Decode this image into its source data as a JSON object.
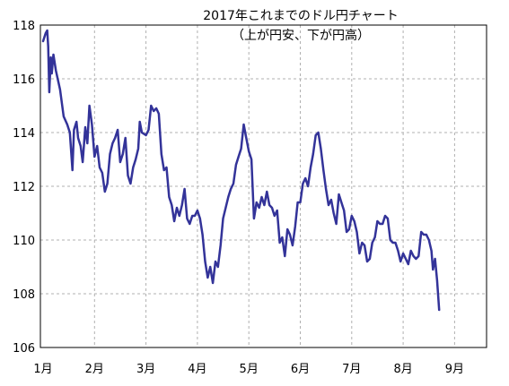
{
  "chart_data": {
    "type": "line",
    "title": "2017年これまでのドル円チャート",
    "subtitle": "（上が円安、下が円高）",
    "xlabel": "",
    "ylabel": "",
    "ylim": [
      106,
      118
    ],
    "yticks": [
      106,
      108,
      110,
      112,
      114,
      116,
      118
    ],
    "xlim": [
      0,
      8.9
    ],
    "xtick_labels": [
      "1月",
      "2月",
      "3月",
      "4月",
      "5月",
      "6月",
      "7月",
      "8月",
      "9月"
    ],
    "grid": true,
    "line_color": "#333399",
    "series": [
      {
        "name": "",
        "points": [
          [
            0.0,
            117.4
          ],
          [
            0.05,
            117.7
          ],
          [
            0.08,
            117.8
          ],
          [
            0.1,
            117.2
          ],
          [
            0.12,
            115.5
          ],
          [
            0.15,
            116.8
          ],
          [
            0.17,
            116.2
          ],
          [
            0.2,
            116.9
          ],
          [
            0.25,
            116.3
          ],
          [
            0.33,
            115.6
          ],
          [
            0.4,
            114.6
          ],
          [
            0.47,
            114.3
          ],
          [
            0.52,
            114.0
          ],
          [
            0.57,
            112.6
          ],
          [
            0.6,
            114.1
          ],
          [
            0.65,
            114.4
          ],
          [
            0.68,
            113.8
          ],
          [
            0.73,
            113.5
          ],
          [
            0.77,
            112.9
          ],
          [
            0.82,
            114.2
          ],
          [
            0.86,
            113.6
          ],
          [
            0.9,
            115.0
          ],
          [
            0.95,
            114.3
          ],
          [
            1.0,
            113.1
          ],
          [
            1.05,
            113.5
          ],
          [
            1.1,
            112.7
          ],
          [
            1.15,
            112.5
          ],
          [
            1.2,
            111.8
          ],
          [
            1.25,
            112.1
          ],
          [
            1.3,
            113.2
          ],
          [
            1.35,
            113.6
          ],
          [
            1.4,
            113.8
          ],
          [
            1.45,
            114.1
          ],
          [
            1.5,
            112.9
          ],
          [
            1.55,
            113.2
          ],
          [
            1.6,
            113.8
          ],
          [
            1.65,
            112.4
          ],
          [
            1.7,
            112.1
          ],
          [
            1.75,
            112.7
          ],
          [
            1.8,
            113.0
          ],
          [
            1.85,
            113.4
          ],
          [
            1.88,
            114.4
          ],
          [
            1.92,
            114.0
          ],
          [
            2.0,
            113.9
          ],
          [
            2.05,
            114.1
          ],
          [
            2.1,
            115.0
          ],
          [
            2.15,
            114.8
          ],
          [
            2.2,
            114.9
          ],
          [
            2.25,
            114.7
          ],
          [
            2.3,
            113.2
          ],
          [
            2.35,
            112.6
          ],
          [
            2.4,
            112.7
          ],
          [
            2.45,
            111.6
          ],
          [
            2.5,
            111.3
          ],
          [
            2.55,
            110.7
          ],
          [
            2.6,
            111.2
          ],
          [
            2.65,
            110.9
          ],
          [
            2.7,
            111.3
          ],
          [
            2.75,
            111.9
          ],
          [
            2.8,
            110.8
          ],
          [
            2.85,
            110.6
          ],
          [
            2.9,
            110.9
          ],
          [
            2.95,
            110.9
          ],
          [
            3.0,
            111.1
          ],
          [
            3.05,
            110.8
          ],
          [
            3.1,
            110.2
          ],
          [
            3.15,
            109.2
          ],
          [
            3.2,
            108.6
          ],
          [
            3.25,
            109.0
          ],
          [
            3.3,
            108.4
          ],
          [
            3.35,
            109.2
          ],
          [
            3.4,
            109.0
          ],
          [
            3.45,
            109.8
          ],
          [
            3.5,
            110.8
          ],
          [
            3.55,
            111.2
          ],
          [
            3.6,
            111.6
          ],
          [
            3.65,
            111.9
          ],
          [
            3.7,
            112.1
          ],
          [
            3.75,
            112.8
          ],
          [
            3.8,
            113.1
          ],
          [
            3.85,
            113.4
          ],
          [
            3.9,
            114.3
          ],
          [
            3.95,
            113.8
          ],
          [
            4.0,
            113.3
          ],
          [
            4.05,
            113.0
          ],
          [
            4.1,
            110.8
          ],
          [
            4.15,
            111.4
          ],
          [
            4.2,
            111.2
          ],
          [
            4.25,
            111.6
          ],
          [
            4.3,
            111.3
          ],
          [
            4.35,
            111.8
          ],
          [
            4.4,
            111.3
          ],
          [
            4.45,
            111.2
          ],
          [
            4.5,
            110.9
          ],
          [
            4.55,
            111.1
          ],
          [
            4.6,
            109.9
          ],
          [
            4.65,
            110.1
          ],
          [
            4.7,
            109.4
          ],
          [
            4.75,
            110.4
          ],
          [
            4.8,
            110.2
          ],
          [
            4.85,
            109.8
          ],
          [
            4.9,
            110.5
          ],
          [
            4.95,
            111.4
          ],
          [
            5.0,
            111.4
          ],
          [
            5.05,
            112.1
          ],
          [
            5.1,
            112.3
          ],
          [
            5.15,
            112.0
          ],
          [
            5.2,
            112.7
          ],
          [
            5.25,
            113.2
          ],
          [
            5.3,
            113.9
          ],
          [
            5.35,
            114.0
          ],
          [
            5.4,
            113.4
          ],
          [
            5.45,
            112.6
          ],
          [
            5.5,
            111.9
          ],
          [
            5.55,
            111.3
          ],
          [
            5.6,
            111.5
          ],
          [
            5.65,
            111.0
          ],
          [
            5.7,
            110.6
          ],
          [
            5.75,
            111.7
          ],
          [
            5.8,
            111.4
          ],
          [
            5.85,
            111.1
          ],
          [
            5.9,
            110.3
          ],
          [
            5.95,
            110.4
          ],
          [
            6.0,
            110.9
          ],
          [
            6.05,
            110.7
          ],
          [
            6.1,
            110.3
          ],
          [
            6.15,
            109.5
          ],
          [
            6.2,
            109.9
          ],
          [
            6.25,
            109.8
          ],
          [
            6.3,
            109.2
          ],
          [
            6.35,
            109.3
          ],
          [
            6.4,
            109.9
          ],
          [
            6.45,
            110.1
          ],
          [
            6.5,
            110.7
          ],
          [
            6.55,
            110.6
          ],
          [
            6.6,
            110.6
          ],
          [
            6.65,
            110.9
          ],
          [
            6.7,
            110.8
          ],
          [
            6.75,
            110.0
          ],
          [
            6.8,
            109.9
          ],
          [
            6.85,
            109.9
          ],
          [
            6.9,
            109.6
          ],
          [
            6.95,
            109.2
          ],
          [
            7.0,
            109.5
          ],
          [
            7.05,
            109.3
          ],
          [
            7.1,
            109.1
          ],
          [
            7.15,
            109.6
          ],
          [
            7.2,
            109.4
          ],
          [
            7.25,
            109.3
          ],
          [
            7.3,
            109.4
          ],
          [
            7.35,
            110.3
          ],
          [
            7.4,
            110.2
          ],
          [
            7.45,
            110.2
          ],
          [
            7.5,
            110.0
          ],
          [
            7.55,
            109.6
          ],
          [
            7.58,
            108.9
          ],
          [
            7.62,
            109.3
          ],
          [
            7.66,
            108.5
          ],
          [
            7.7,
            107.4
          ]
        ]
      }
    ]
  }
}
